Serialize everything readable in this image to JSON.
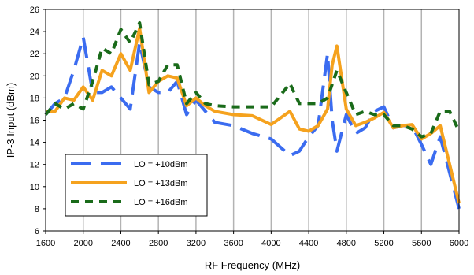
{
  "chart_data": {
    "type": "line",
    "title": "",
    "xlabel": "RF Frequency (MHz)",
    "ylabel": "IP-3 Input (dBm)",
    "xlim": [
      1600,
      6000
    ],
    "ylim": [
      6,
      26
    ],
    "x_ticks": [
      1600,
      2000,
      2400,
      2800,
      3200,
      3600,
      4000,
      4400,
      4800,
      5200,
      5600,
      6000
    ],
    "y_ticks": [
      6,
      8,
      10,
      12,
      14,
      16,
      18,
      20,
      22,
      24,
      26
    ],
    "x_tick_labels": [
      "1600",
      "2000",
      "2400",
      "2800",
      "3200",
      "3600",
      "4000",
      "4400",
      "4800",
      "5200",
      "5600",
      "6000"
    ],
    "y_tick_labels": [
      "6",
      "8",
      "10",
      "12",
      "14",
      "16",
      "18",
      "20",
      "22",
      "24",
      "26"
    ],
    "grid": "vertical",
    "legend_position": "bottom-left",
    "series": [
      {
        "name": "LO = +10dBm",
        "color": "#3b6cf0",
        "dash": "long-dash",
        "x": [
          1600,
          1700,
          1800,
          1900,
          2000,
          2100,
          2200,
          2300,
          2400,
          2500,
          2600,
          2700,
          2800,
          2900,
          3000,
          3100,
          3200,
          3400,
          3600,
          3800,
          4000,
          4200,
          4300,
          4400,
          4500,
          4600,
          4650,
          4700,
          4800,
          4900,
          5000,
          5100,
          5200,
          5300,
          5400,
          5500,
          5600,
          5700,
          5800,
          6000
        ],
        "y": [
          16.5,
          17.5,
          18,
          20.5,
          23.5,
          18.5,
          18.5,
          19,
          18,
          17,
          23,
          19,
          18.5,
          18.5,
          19.5,
          16.5,
          17.8,
          15.8,
          15.5,
          14.8,
          14.3,
          12.8,
          13.2,
          14.5,
          15.5,
          22,
          16,
          13.2,
          16.5,
          14.8,
          15.3,
          16.8,
          17.2,
          15.3,
          15.5,
          15.5,
          13.8,
          12,
          14.5,
          8
        ]
      },
      {
        "name": "LO = +13dBm",
        "color": "#f5a21e",
        "dash": "solid",
        "x": [
          1600,
          1700,
          1800,
          1900,
          2000,
          2100,
          2200,
          2300,
          2400,
          2500,
          2600,
          2700,
          2800,
          2900,
          3000,
          3100,
          3200,
          3300,
          3400,
          3600,
          3800,
          4000,
          4200,
          4300,
          4400,
          4500,
          4600,
          4650,
          4700,
          4800,
          4900,
          5000,
          5100,
          5200,
          5300,
          5400,
          5500,
          5600,
          5700,
          5800,
          5900,
          6000
        ],
        "y": [
          16.8,
          16.8,
          18,
          17.8,
          19,
          17.8,
          20.5,
          20,
          22,
          20.5,
          24.3,
          18.5,
          19.5,
          20,
          19.8,
          17.3,
          18,
          17.3,
          16.8,
          16.5,
          16.4,
          15.6,
          16.8,
          15.2,
          15,
          15.5,
          17,
          21,
          22.7,
          17,
          15.5,
          15.8,
          16.2,
          16.7,
          15.3,
          15.5,
          15.6,
          14.3,
          14.8,
          15.5,
          12,
          8.5
        ]
      },
      {
        "name": "LO = +16dBm",
        "color": "#1a6b1a",
        "dash": "short-dash",
        "x": [
          1600,
          1700,
          1800,
          1900,
          2000,
          2100,
          2200,
          2300,
          2400,
          2500,
          2600,
          2700,
          2800,
          2900,
          3000,
          3100,
          3200,
          3300,
          3400,
          3600,
          3800,
          4000,
          4200,
          4300,
          4400,
          4500,
          4600,
          4700,
          4800,
          4900,
          5000,
          5100,
          5200,
          5300,
          5400,
          5500,
          5600,
          5700,
          5800,
          5900,
          6000
        ],
        "y": [
          16.5,
          17.5,
          17,
          17.5,
          17,
          19.5,
          22.5,
          22,
          24.2,
          23,
          24.8,
          19.2,
          19.5,
          21,
          21,
          17.5,
          18.5,
          17.5,
          17.3,
          17.2,
          17.2,
          17.2,
          19.3,
          17.5,
          17.5,
          17.5,
          18,
          20.5,
          18.5,
          16.5,
          16.8,
          16.5,
          16.5,
          15.5,
          15.5,
          15.2,
          14.5,
          14.8,
          16.8,
          16.8,
          15
        ]
      }
    ]
  }
}
